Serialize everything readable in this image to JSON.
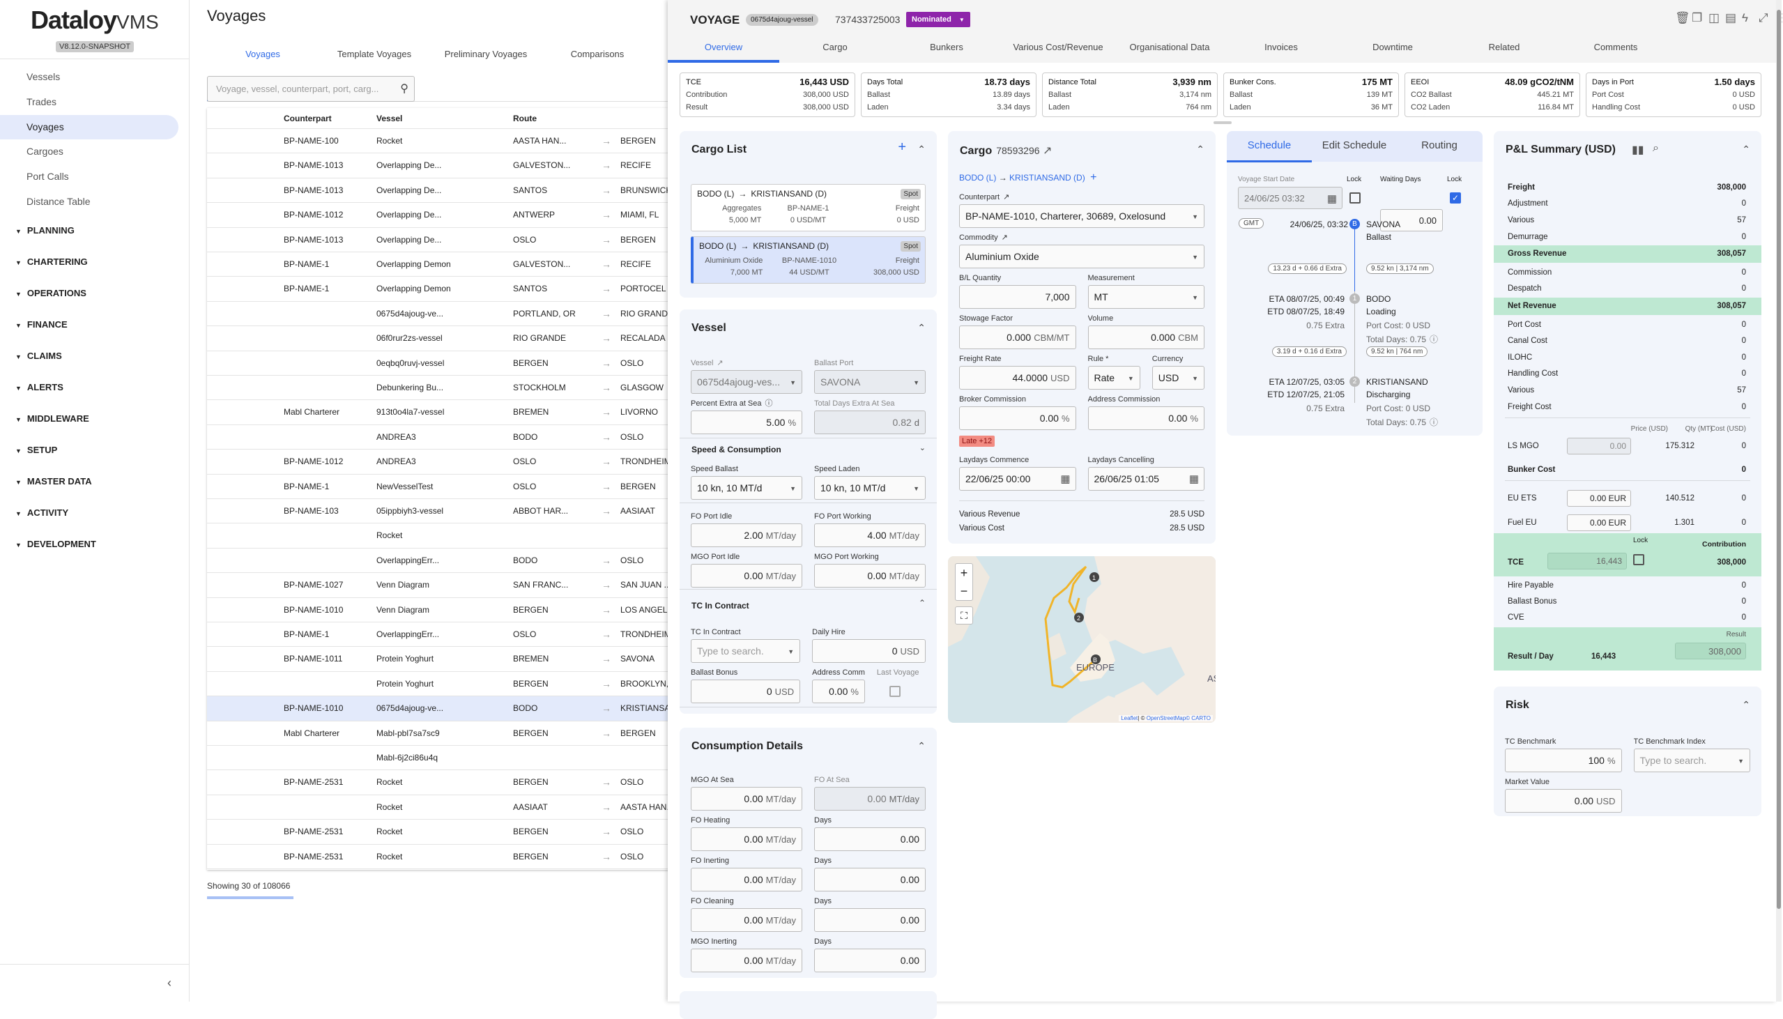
{
  "sidebar": {
    "logo_main": "Dataloy",
    "logo_suffix": "VMS",
    "version": "V8.12.0-SNAPSHOT",
    "items": [
      "Vessels",
      "Trades",
      "Voyages",
      "Cargoes",
      "Port Calls",
      "Distance Table"
    ],
    "selected": "Voyages",
    "sections": [
      "PLANNING",
      "CHARTERING",
      "OPERATIONS",
      "FINANCE",
      "CLAIMS",
      "ALERTS",
      "MIDDLEWARE",
      "SETUP",
      "MASTER DATA",
      "ACTIVITY",
      "DEVELOPMENT"
    ],
    "collapse_icon": "‹"
  },
  "list": {
    "title": "Voyages",
    "tabs": [
      "Voyages",
      "Template Voyages",
      "Preliminary Voyages",
      "Comparisons"
    ],
    "active_tab": 0,
    "search_placeholder": "Voyage, vessel, counterpart, port, carg...",
    "columns": [
      "Counterpart",
      "Vessel",
      "Route"
    ],
    "rows": [
      [
        "BP-NAME-100",
        "Rocket",
        "AASTA HAN...",
        "BERGEN"
      ],
      [
        "BP-NAME-1013",
        "Overlapping De...",
        "GALVESTON...",
        "RECIFE"
      ],
      [
        "BP-NAME-1013",
        "Overlapping De...",
        "SANTOS",
        "BRUNSWICK"
      ],
      [
        "BP-NAME-1012",
        "Overlapping De...",
        "ANTWERP",
        "MIAMI, FL"
      ],
      [
        "BP-NAME-1013",
        "Overlapping De...",
        "OSLO",
        "BERGEN"
      ],
      [
        "BP-NAME-1",
        "Overlapping Demon",
        "GALVESTON...",
        "RECIFE"
      ],
      [
        "BP-NAME-1",
        "Overlapping Demon",
        "SANTOS",
        "PORTOCEL"
      ],
      [
        "",
        "0675d4ajoug-ve...",
        "PORTLAND, OR",
        "RIO GRANDE"
      ],
      [
        "",
        "06f0rur2zs-vessel",
        "RIO GRANDE",
        "RECALADA ..."
      ],
      [
        "",
        "0eqbq0ruvj-vessel",
        "BERGEN",
        "OSLO"
      ],
      [
        "",
        "Debunkering Bu...",
        "STOCKHOLM",
        "GLASGOW"
      ],
      [
        "Mabl Charterer",
        "913t0o4la7-vessel",
        "BREMEN",
        "LIVORNO"
      ],
      [
        "",
        "ANDREA3",
        "BODO",
        "OSLO"
      ],
      [
        "BP-NAME-1012",
        "ANDREA3",
        "OSLO",
        "TRONDHEIM"
      ],
      [
        "BP-NAME-1",
        "NewVesselTest",
        "OSLO",
        "BERGEN"
      ],
      [
        "BP-NAME-103",
        "05ippbiyh3-vessel",
        "ABBOT HAR...",
        "AASIAAT"
      ],
      [
        "",
        "Rocket",
        "",
        ""
      ],
      [
        "",
        "OverlappingErr...",
        "BODO",
        "OSLO"
      ],
      [
        "BP-NAME-1027",
        "Venn Diagram",
        "SAN FRANC...",
        "SAN JUAN ..."
      ],
      [
        "BP-NAME-1010",
        "Venn Diagram",
        "BERGEN",
        "LOS ANGEL..."
      ],
      [
        "BP-NAME-1",
        "OverlappingErr...",
        "OSLO",
        "TRONDHEIM"
      ],
      [
        "BP-NAME-1011",
        "Protein Yoghurt",
        "BREMEN",
        "SAVONA"
      ],
      [
        "",
        "Protein Yoghurt",
        "BERGEN",
        "BROOKLYN, ..."
      ],
      [
        "BP-NAME-1010",
        "0675d4ajoug-ve...",
        "BODO",
        "KRISTIANSAND"
      ],
      [
        "Mabl Charterer",
        "Mabl-pbl7sa7sc9",
        "BERGEN",
        "BERGEN"
      ],
      [
        "",
        "Mabl-6j2ci86u4q",
        "",
        ""
      ],
      [
        "BP-NAME-2531",
        "Rocket",
        "BERGEN",
        "OSLO"
      ],
      [
        "",
        "Rocket",
        "AASIAAT",
        "AASTA HAN..."
      ],
      [
        "BP-NAME-2531",
        "Rocket",
        "BERGEN",
        "OSLO"
      ],
      [
        "BP-NAME-2531",
        "Rocket",
        "BERGEN",
        "OSLO"
      ]
    ],
    "selected_row": 23,
    "footer": "Showing 30 of 108066"
  },
  "voyage": {
    "title": "VOYAGE",
    "vessel_chip": "0675d4ajoug-vessel",
    "number": "737433725003",
    "status": "Nominated",
    "status_color": "#8e24aa",
    "tabs": [
      "Overview",
      "Cargo",
      "Bunkers",
      "Various Cost/Revenue",
      "Organisational Data",
      "Invoices",
      "Downtime",
      "Related",
      "Comments"
    ],
    "active_tab": 0,
    "toolbar_icons": [
      "trash-icon",
      "copy-icon",
      "compare-icon",
      "pdf-icon",
      "flash-icon",
      "expand-icon",
      "more-icon",
      "close-icon"
    ]
  },
  "kpis": [
    {
      "rows": [
        [
          "TCE",
          "16,443 USD"
        ],
        [
          "Contribution",
          "308,000 USD"
        ],
        [
          "Result",
          "308,000 USD"
        ]
      ]
    },
    {
      "rows": [
        [
          "Days Total",
          "18.73 days"
        ],
        [
          "Ballast",
          "13.89 days"
        ],
        [
          "Laden",
          "3.34 days"
        ]
      ]
    },
    {
      "rows": [
        [
          "Distance Total",
          "3,939 nm"
        ],
        [
          "Ballast",
          "3,174 nm"
        ],
        [
          "Laden",
          "764 nm"
        ]
      ]
    },
    {
      "rows": [
        [
          "Bunker Cons.",
          "175 MT"
        ],
        [
          "Ballast",
          "139 MT"
        ],
        [
          "Laden",
          "36 MT"
        ]
      ]
    },
    {
      "rows": [
        [
          "EEOI",
          "48.09 gCO2/tNM"
        ],
        [
          "CO2 Ballast",
          "445.21 MT"
        ],
        [
          "CO2 Laden",
          "116.84 MT"
        ]
      ]
    },
    {
      "rows": [
        [
          "Days in Port",
          "1.50 days"
        ],
        [
          "Port Cost",
          "0 USD"
        ],
        [
          "Handling Cost",
          "0 USD"
        ]
      ]
    }
  ],
  "cargo_list": {
    "title": "Cargo List",
    "items": [
      {
        "from": "BODO (L)",
        "to": "KRISTIANSAND (D)",
        "type": "Spot",
        "commodity": "Aggregates",
        "counterpart": "BP-NAME-1",
        "freight_label": "Freight",
        "qty": "5,000 MT",
        "rate": "0 USD/MT",
        "freight": "0 USD"
      },
      {
        "from": "BODO (L)",
        "to": "KRISTIANSAND (D)",
        "type": "Spot",
        "commodity": "Aluminium Oxide",
        "counterpart": "BP-NAME-1010",
        "freight_label": "Freight",
        "qty": "7,000 MT",
        "rate": "44 USD/MT",
        "freight": "308,000 USD"
      }
    ]
  },
  "vessel": {
    "title": "Vessel",
    "fields_a": [
      {
        "label": "Vessel",
        "value": "0675d4ajoug-ves...",
        "kind": "select",
        "disabled": true,
        "link": true
      },
      {
        "label": "Ballast Port",
        "value": "SAVONA",
        "kind": "select",
        "disabled": true
      },
      {
        "label": "Percent Extra at Sea",
        "value": "5.00",
        "unit": "%",
        "info": true
      },
      {
        "label": "Total Days Extra At Sea",
        "value": "0.82",
        "unit": "d",
        "disabled": true
      }
    ],
    "speed_title": "Speed & Consumption",
    "fields_b": [
      {
        "label": "Speed Ballast",
        "value": "10 kn, 10 MT/d",
        "kind": "select"
      },
      {
        "label": "Speed Laden",
        "value": "10 kn, 10 MT/d",
        "kind": "select"
      }
    ],
    "fields_c": [
      {
        "label": "FO Port Idle",
        "value": "2.00",
        "unit": "MT/day"
      },
      {
        "label": "FO Port Working",
        "value": "4.00",
        "unit": "MT/day"
      },
      {
        "label": "MGO Port Idle",
        "value": "0.00",
        "unit": "MT/day"
      },
      {
        "label": "MGO Port Working",
        "value": "0.00",
        "unit": "MT/day"
      }
    ],
    "tc_title": "TC In Contract",
    "fields_d": [
      {
        "label": "TC In Contract",
        "placeholder": "Type to search.",
        "kind": "select"
      },
      {
        "label": "Daily Hire",
        "value": "0",
        "unit": "USD"
      },
      {
        "label": "Ballast Bonus",
        "value": "0",
        "unit": "USD"
      },
      {
        "label": "Address Comm",
        "value": "0.00",
        "unit": "%",
        "small": true
      },
      {
        "label": "Last Voyage",
        "kind": "checkbox",
        "small": true,
        "disabled": true
      }
    ]
  },
  "consumption": {
    "title": "Consumption Details",
    "fields": [
      {
        "label": "MGO At Sea",
        "value": "0.00",
        "unit": "MT/day"
      },
      {
        "label": "FO At Sea",
        "value": "0.00",
        "unit": "MT/day",
        "disabled": true
      },
      {
        "label": "FO Heating",
        "value": "0.00",
        "unit": "MT/day"
      },
      {
        "label": "Days",
        "value": "0.00"
      },
      {
        "label": "FO Inerting",
        "value": "0.00",
        "unit": "MT/day"
      },
      {
        "label": "Days",
        "value": "0.00"
      },
      {
        "label": "FO Cleaning",
        "value": "0.00",
        "unit": "MT/day"
      },
      {
        "label": "Days",
        "value": "0.00"
      },
      {
        "label": "MGO Inerting",
        "value": "0.00",
        "unit": "MT/day"
      },
      {
        "label": "Days",
        "value": "0.00"
      }
    ]
  },
  "cargo": {
    "title": "Cargo",
    "number": "78593296",
    "route_from": "BODO (L)",
    "route_to": "KRISTIANSAND (D)",
    "fields": [
      {
        "label": "Counterpart",
        "value": "BP-NAME-1010, Charterer, 30689, Oxelosund",
        "kind": "select",
        "wide": true,
        "link": true
      },
      {
        "label": "Commodity",
        "value": "Aluminium Oxide",
        "kind": "select",
        "wide": true,
        "link": true
      },
      {
        "label": "B/L Quantity",
        "value": "7,000"
      },
      {
        "label": "Measurement",
        "value": "MT",
        "kind": "select"
      },
      {
        "label": "Stowage Factor",
        "value": "0.000",
        "unit": "CBM/MT"
      },
      {
        "label": "Volume",
        "value": "0.000",
        "unit": "CBM"
      },
      {
        "label": "Freight Rate",
        "value": "44.0000",
        "unit": "USD"
      },
      {
        "label": "Rule *",
        "value": "Rate",
        "kind": "select",
        "small": true
      },
      {
        "label": "Currency",
        "value": "USD",
        "kind": "select",
        "small": true
      },
      {
        "label": "Broker Commission",
        "value": "0.00",
        "unit": "%"
      },
      {
        "label": "Address Commission",
        "value": "0.00",
        "unit": "%"
      }
    ],
    "late_badge": "Late +12",
    "laydays": [
      {
        "label": "Laydays Commence",
        "value": "22/06/25 00:00",
        "kind": "date"
      },
      {
        "label": "Laydays Cancelling",
        "value": "26/06/25 01:05",
        "kind": "date"
      }
    ],
    "various": [
      [
        "Various Revenue",
        "28.5 USD"
      ],
      [
        "Various Cost",
        "28.5 USD"
      ]
    ]
  },
  "map": {
    "zoom_in": "+",
    "zoom_out": "−",
    "label_europe": "EUROPE",
    "label_asia": "AS",
    "markers": [
      "1",
      "2",
      "B"
    ],
    "attribution_leaflet": "Leaflet",
    "attribution_rest": "| © ",
    "attribution_osm": "OpenStreetMap",
    "attribution_carto": "© CARTO",
    "route_color": "#f0b429"
  },
  "schedule": {
    "tabs": [
      "Schedule",
      "Edit Schedule",
      "Routing"
    ],
    "active_tab": 0,
    "start_label": "Voyage Start Date",
    "start_value": "24/06/25 03:32",
    "lock_label": "Lock",
    "waiting_label": "Waiting Days",
    "waiting_value": "0.00",
    "lock2_label": "Lock",
    "start_locked": false,
    "waiting_locked": true,
    "tz": "GMT",
    "start_time": "24/06/25, 03:32",
    "ports": [
      {
        "marker": "B",
        "name": "SAVONA",
        "activity": "Ballast"
      },
      {
        "marker": "1",
        "name": "BODO",
        "activity": "Loading",
        "leg": "13.23 d + 0.66 d Extra",
        "speed": "9.52 kn | 3,174 nm",
        "eta": "ETA 08/07/25, 00:49",
        "etd": "ETD 08/07/25, 18:49",
        "extra": "0.75 Extra",
        "port_cost": "Port Cost: 0 USD",
        "total_days": "Total Days: 0.75"
      },
      {
        "marker": "2",
        "name": "KRISTIANSAND",
        "activity": "Discharging",
        "leg": "3.19 d + 0.16 d Extra",
        "speed": "9.52 kn | 764 nm",
        "eta": "ETA 12/07/25, 03:05",
        "etd": "ETD 12/07/25, 21:05",
        "extra": "0.75 Extra",
        "port_cost": "Port Cost: 0 USD",
        "total_days": "Total Days: 0.75"
      }
    ]
  },
  "pnl": {
    "title": "P&L Summary (USD)",
    "rows": [
      {
        "label": "Freight",
        "value": "308,000",
        "kind": "bold"
      },
      {
        "label": "Adjustment",
        "value": "0"
      },
      {
        "label": "Various",
        "value": "57"
      },
      {
        "label": "Demurrage",
        "value": "0"
      },
      {
        "label": "Gross Revenue",
        "value": "308,057",
        "kind": "band"
      },
      {
        "label": "Commission",
        "value": "0"
      },
      {
        "label": "Despatch",
        "value": "0"
      },
      {
        "label": "Net Revenue",
        "value": "308,057",
        "kind": "band"
      },
      {
        "label": "Port Cost",
        "value": "0"
      },
      {
        "label": "Canal Cost",
        "value": "0"
      },
      {
        "label": "ILOHC",
        "value": "0"
      },
      {
        "label": "Handling Cost",
        "value": "0"
      },
      {
        "label": "Various",
        "value": "57"
      },
      {
        "label": "Freight Cost",
        "value": "0"
      }
    ],
    "bunker_headers": [
      "Price (USD)",
      "Qty (MT)",
      "Cost (USD)"
    ],
    "bunker": {
      "label": "LS MGO",
      "price": "0.00",
      "qty": "175.312",
      "cost": "0"
    },
    "bunker_cost": {
      "label": "Bunker Cost",
      "value": "0"
    },
    "emissions": [
      {
        "label": "EU ETS",
        "price": "0.00 EUR",
        "qty": "140.512",
        "cost": "0"
      },
      {
        "label": "Fuel EU",
        "price": "0.00 EUR",
        "qty": "1.301",
        "cost": "0"
      }
    ],
    "tce": {
      "label": "TCE",
      "value": "16,443",
      "lock_label": "Lock",
      "contribution_label": "Contribution",
      "contribution": "308,000"
    },
    "after": [
      {
        "label": "Hire Payable",
        "value": "0"
      },
      {
        "label": "Ballast Bonus",
        "value": "0"
      },
      {
        "label": "CVE",
        "value": "0"
      }
    ],
    "result": {
      "label": "Result / Day",
      "per_day": "16,443",
      "result_label": "Result",
      "result": "308,000"
    }
  },
  "risk": {
    "title": "Risk",
    "fields": [
      {
        "label": "TC Benchmark",
        "value": "100",
        "unit": "%"
      },
      {
        "label": "TC Benchmark Index",
        "placeholder": "Type to search.",
        "kind": "select"
      },
      {
        "label": "Market Value",
        "value": "0.00",
        "unit": "USD"
      }
    ]
  },
  "colors": {
    "accent": "#2f6ae6",
    "card": "#f2f5fb",
    "band": "#bee8d2",
    "late": "#f28b82"
  }
}
